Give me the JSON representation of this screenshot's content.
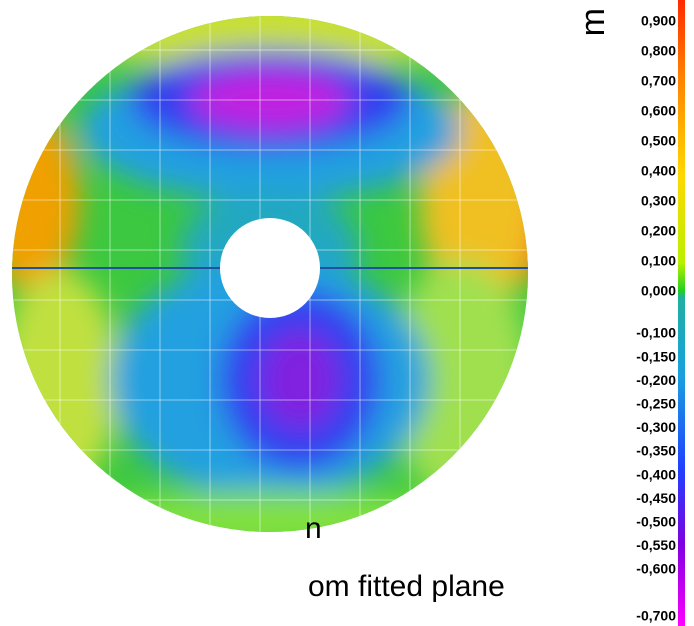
{
  "unit": "m",
  "caption": {
    "line1": "n",
    "line2": "om fitted plane"
  },
  "colorbar": {
    "positive_labels": [
      "0,900",
      "0,800",
      "0,700",
      "0,600",
      "0,500",
      "0,400",
      "0,300",
      "0,200",
      "0,100",
      "0,000"
    ],
    "negative_labels": [
      "-0,100",
      "-0,150",
      "-0,200",
      "-0,250",
      "-0,300",
      "-0,350",
      "-0,400",
      "-0,450",
      "-0,500",
      "-0,550",
      "-0,600"
    ],
    "bottom_label": "-0,700"
  }
}
